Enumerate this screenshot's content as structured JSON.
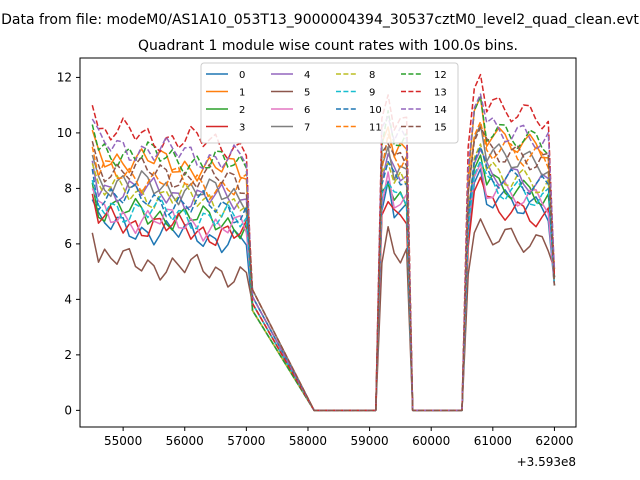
{
  "figure": {
    "suptitle": "Data from file: modeM0/AS1A10_053T13_9000004394_30537cztM0_level2_quad_clean.evt",
    "title": "Quadrant 1 module wise count rates with 100.0s bins."
  },
  "chart_data": {
    "type": "line",
    "x_offset_text": "+3.593e8",
    "xlim": [
      54300,
      62350
    ],
    "ylim": [
      -0.6,
      12.7
    ],
    "x_ticks": [
      55000,
      56000,
      57000,
      58000,
      59000,
      60000,
      61000,
      62000
    ],
    "x_tick_labels": [
      "55000",
      "56000",
      "57000",
      "58000",
      "59000",
      "60000",
      "61000",
      "62000"
    ],
    "y_ticks": [
      0,
      2,
      4,
      6,
      8,
      10,
      12
    ],
    "y_tick_labels": [
      "0",
      "2",
      "4",
      "6",
      "8",
      "10",
      "12"
    ],
    "grid": false,
    "legend": {
      "placement": "upper-center",
      "columns": 4
    },
    "segments": {
      "seg1_x_range": [
        54500,
        57000
      ],
      "seg2_x": [
        59200,
        59300,
        59400,
        59500,
        59600
      ],
      "seg3_x_range": [
        60600,
        62000
      ],
      "gap1_x": [
        57100,
        58100,
        59100
      ],
      "gap2_x": [
        59700,
        60500
      ]
    },
    "series": [
      {
        "name": "0",
        "color": "#1f77b4",
        "dash": "solid",
        "seg1_level": 6.7,
        "seg2_level": 7.2,
        "seg3_level": 7.7,
        "seg3_peak": 8.7
      },
      {
        "name": "1",
        "color": "#ff7f0e",
        "dash": "solid",
        "seg1_level": 9.2,
        "seg2_level": 9.4,
        "seg3_level": 9.9,
        "seg3_peak": 11.3
      },
      {
        "name": "2",
        "color": "#2ca02c",
        "dash": "solid",
        "seg1_level": 7.3,
        "seg2_level": 7.6,
        "seg3_level": 8.2,
        "seg3_peak": 9.2
      },
      {
        "name": "3",
        "color": "#d62728",
        "dash": "solid",
        "seg1_level": 6.9,
        "seg2_level": 7.0,
        "seg3_level": 7.4,
        "seg3_peak": 8.4
      },
      {
        "name": "4",
        "color": "#9467bd",
        "dash": "solid",
        "seg1_level": 8.1,
        "seg2_level": 8.5,
        "seg3_level": 8.6,
        "seg3_peak": 9.4
      },
      {
        "name": "5",
        "color": "#8c564b",
        "dash": "solid",
        "seg1_level": 5.5,
        "seg2_level": 5.6,
        "seg3_level": 6.4,
        "seg3_peak": 6.9
      },
      {
        "name": "6",
        "color": "#e377c2",
        "dash": "solid",
        "seg1_level": 7.1,
        "seg2_level": 7.5,
        "seg3_level": 8.0,
        "seg3_peak": 8.9
      },
      {
        "name": "7",
        "color": "#7f7f7f",
        "dash": "solid",
        "seg1_level": 8.3,
        "seg2_level": 8.6,
        "seg3_level": 9.3,
        "seg3_peak": 10.3
      },
      {
        "name": "8",
        "color": "#bcbd22",
        "dash": "dashed",
        "seg1_level": 8.0,
        "seg2_level": 8.3,
        "seg3_level": 8.6,
        "seg3_peak": 9.6
      },
      {
        "name": "9",
        "color": "#17becf",
        "dash": "dashed",
        "seg1_level": 7.4,
        "seg2_level": 7.7,
        "seg3_level": 8.1,
        "seg3_peak": 9.0
      },
      {
        "name": "10",
        "color": "#1f77b4",
        "dash": "dashed",
        "seg1_level": 7.8,
        "seg2_level": 8.3,
        "seg3_level": 8.5,
        "seg3_peak": 9.5
      },
      {
        "name": "11",
        "color": "#ff7f0e",
        "dash": "dashed",
        "seg1_level": 8.6,
        "seg2_level": 9.0,
        "seg3_level": 9.5,
        "seg3_peak": 10.4
      },
      {
        "name": "12",
        "color": "#2ca02c",
        "dash": "dashed",
        "seg1_level": 9.4,
        "seg2_level": 9.7,
        "seg3_level": 10.1,
        "seg3_peak": 11.3
      },
      {
        "name": "13",
        "color": "#d62728",
        "dash": "dashed",
        "seg1_level": 10.1,
        "seg2_level": 10.4,
        "seg3_level": 11.0,
        "seg3_peak": 12.1
      },
      {
        "name": "14",
        "color": "#9467bd",
        "dash": "dashed",
        "seg1_level": 9.6,
        "seg2_level": 9.9,
        "seg3_level": 10.2,
        "seg3_peak": 11.4
      },
      {
        "name": "15",
        "color": "#8c564b",
        "dash": "dashed",
        "seg1_level": 8.8,
        "seg2_level": 9.1,
        "seg3_level": 9.4,
        "seg3_peak": 10.2
      }
    ]
  }
}
